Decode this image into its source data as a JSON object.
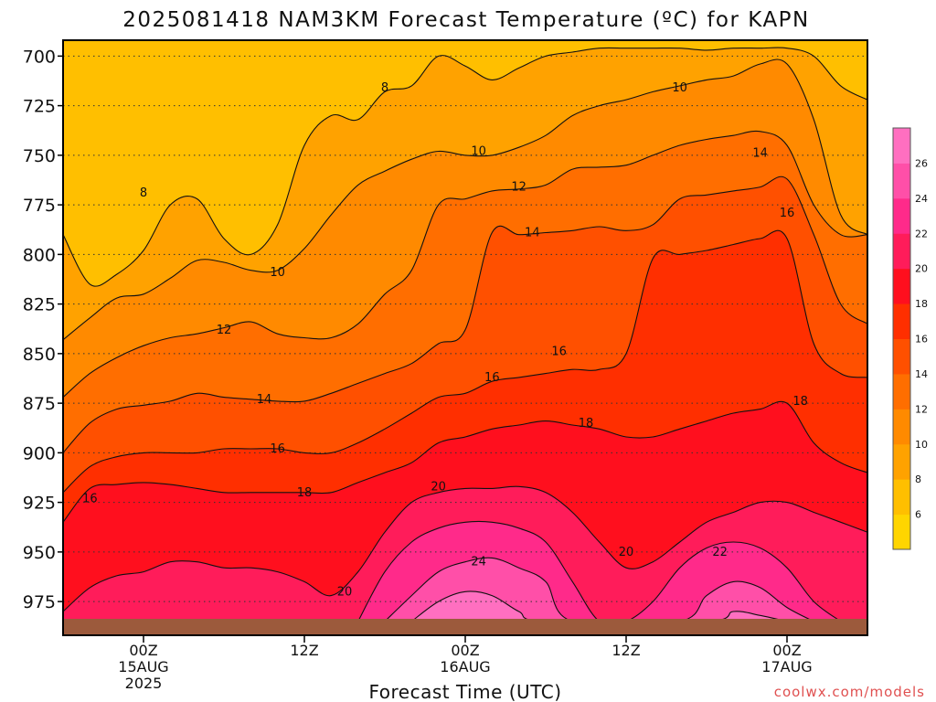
{
  "chart_data": {
    "type": "heatmap",
    "title": "2025081418 NAM3KM Forecast Temperature (ºC) for KAPN",
    "xlabel": "Forecast Time (UTC)",
    "ylabel": "",
    "credit": "coolwx.com/models",
    "x_range_hours": [
      -6,
      54
    ],
    "y_range_hPa": [
      692,
      992
    ],
    "y_ticks": [
      700,
      725,
      750,
      775,
      800,
      825,
      850,
      875,
      900,
      925,
      950,
      975
    ],
    "x_ticks": [
      {
        "hour": 0,
        "lines": [
          "00Z",
          "15AUG",
          "2025"
        ]
      },
      {
        "hour": 12,
        "lines": [
          "12Z"
        ]
      },
      {
        "hour": 24,
        "lines": [
          "00Z",
          "16AUG"
        ]
      },
      {
        "hour": 36,
        "lines": [
          "12Z"
        ]
      },
      {
        "hour": 48,
        "lines": [
          "00Z",
          "17AUG"
        ]
      }
    ],
    "grid": true,
    "ground_level_hPa": 985,
    "colorbar": {
      "position": "right",
      "levels": [
        6,
        8,
        10,
        12,
        14,
        16,
        18,
        20,
        22,
        24,
        26
      ],
      "colors": [
        "#ffd500",
        "#ffbf00",
        "#ffa200",
        "#ff8a00",
        "#ff6e00",
        "#ff5000",
        "#ff2f00",
        "#ff0f1e",
        "#ff1c5a",
        "#ff2a8a",
        "#ff4fa8",
        "#ff6fc0"
      ]
    },
    "contour_interval": 2,
    "series": [
      {
        "level": 8,
        "pressure_by_hour": [
          [
            -6,
            790
          ],
          [
            -4,
            815
          ],
          [
            -2,
            810
          ],
          [
            0,
            798
          ],
          [
            2,
            775
          ],
          [
            4,
            772
          ],
          [
            6,
            792
          ],
          [
            8,
            800
          ],
          [
            10,
            785
          ],
          [
            12,
            745
          ],
          [
            14,
            730
          ],
          [
            16,
            732
          ],
          [
            18,
            718
          ],
          [
            20,
            715
          ],
          [
            22,
            700
          ],
          [
            24,
            705
          ],
          [
            26,
            712
          ],
          [
            28,
            706
          ],
          [
            30,
            700
          ],
          [
            32,
            698
          ],
          [
            34,
            696
          ],
          [
            36,
            696
          ],
          [
            38,
            696
          ],
          [
            40,
            696
          ],
          [
            42,
            697
          ],
          [
            44,
            696
          ],
          [
            46,
            696
          ],
          [
            48,
            696
          ],
          [
            50,
            700
          ],
          [
            52,
            715
          ],
          [
            54,
            722
          ]
        ]
      },
      {
        "level": 10,
        "pressure_by_hour": [
          [
            -6,
            843
          ],
          [
            -4,
            832
          ],
          [
            -2,
            822
          ],
          [
            0,
            820
          ],
          [
            2,
            812
          ],
          [
            4,
            803
          ],
          [
            6,
            804
          ],
          [
            8,
            808
          ],
          [
            10,
            808
          ],
          [
            12,
            797
          ],
          [
            14,
            780
          ],
          [
            16,
            765
          ],
          [
            18,
            758
          ],
          [
            20,
            752
          ],
          [
            22,
            748
          ],
          [
            24,
            750
          ],
          [
            26,
            750
          ],
          [
            28,
            746
          ],
          [
            30,
            740
          ],
          [
            32,
            730
          ],
          [
            34,
            725
          ],
          [
            36,
            722
          ],
          [
            38,
            718
          ],
          [
            40,
            715
          ],
          [
            42,
            712
          ],
          [
            44,
            710
          ],
          [
            46,
            704
          ],
          [
            48,
            704
          ],
          [
            50,
            732
          ],
          [
            52,
            780
          ],
          [
            54,
            790
          ]
        ]
      },
      {
        "level": 12,
        "pressure_by_hour": [
          [
            -6,
            872
          ],
          [
            -4,
            860
          ],
          [
            -2,
            852
          ],
          [
            0,
            846
          ],
          [
            2,
            842
          ],
          [
            4,
            840
          ],
          [
            6,
            837
          ],
          [
            8,
            834
          ],
          [
            10,
            840
          ],
          [
            12,
            842
          ],
          [
            14,
            842
          ],
          [
            16,
            835
          ],
          [
            18,
            820
          ],
          [
            20,
            808
          ],
          [
            22,
            775
          ],
          [
            24,
            772
          ],
          [
            26,
            768
          ],
          [
            28,
            767
          ],
          [
            30,
            765
          ],
          [
            32,
            757
          ],
          [
            34,
            756
          ],
          [
            36,
            755
          ],
          [
            38,
            750
          ],
          [
            40,
            745
          ],
          [
            42,
            742
          ],
          [
            44,
            740
          ],
          [
            46,
            738
          ],
          [
            48,
            745
          ],
          [
            50,
            775
          ],
          [
            52,
            790
          ],
          [
            54,
            790
          ]
        ]
      },
      {
        "level": 14,
        "pressure_by_hour": [
          [
            -6,
            900
          ],
          [
            -4,
            885
          ],
          [
            -2,
            878
          ],
          [
            0,
            876
          ],
          [
            2,
            874
          ],
          [
            4,
            870
          ],
          [
            6,
            872
          ],
          [
            8,
            873
          ],
          [
            10,
            874
          ],
          [
            12,
            874
          ],
          [
            14,
            870
          ],
          [
            16,
            865
          ],
          [
            18,
            860
          ],
          [
            20,
            855
          ],
          [
            22,
            845
          ],
          [
            24,
            838
          ],
          [
            26,
            789
          ],
          [
            28,
            790
          ],
          [
            30,
            789
          ],
          [
            32,
            788
          ],
          [
            34,
            786
          ],
          [
            36,
            788
          ],
          [
            38,
            785
          ],
          [
            40,
            772
          ],
          [
            42,
            770
          ],
          [
            44,
            768
          ],
          [
            46,
            766
          ],
          [
            48,
            762
          ],
          [
            50,
            790
          ],
          [
            52,
            825
          ],
          [
            54,
            835
          ]
        ]
      },
      {
        "level": 16,
        "pressure_by_hour": [
          [
            -6,
            920
          ],
          [
            -4,
            907
          ],
          [
            -2,
            902
          ],
          [
            0,
            900
          ],
          [
            2,
            900
          ],
          [
            4,
            900
          ],
          [
            6,
            898
          ],
          [
            8,
            898
          ],
          [
            10,
            898
          ],
          [
            12,
            900
          ],
          [
            14,
            900
          ],
          [
            16,
            895
          ],
          [
            18,
            888
          ],
          [
            20,
            880
          ],
          [
            22,
            872
          ],
          [
            24,
            870
          ],
          [
            26,
            864
          ],
          [
            28,
            862
          ],
          [
            30,
            860
          ],
          [
            32,
            858
          ],
          [
            34,
            858
          ],
          [
            36,
            850
          ],
          [
            38,
            802
          ],
          [
            40,
            800
          ],
          [
            42,
            798
          ],
          [
            44,
            795
          ],
          [
            46,
            792
          ],
          [
            48,
            792
          ],
          [
            50,
            845
          ],
          [
            52,
            860
          ],
          [
            54,
            862
          ]
        ]
      },
      {
        "level": 18,
        "pressure_by_hour": [
          [
            -6,
            935
          ],
          [
            -4,
            918
          ],
          [
            -2,
            916
          ],
          [
            0,
            915
          ],
          [
            2,
            916
          ],
          [
            4,
            918
          ],
          [
            6,
            920
          ],
          [
            8,
            920
          ],
          [
            10,
            920
          ],
          [
            12,
            920
          ],
          [
            14,
            920
          ],
          [
            16,
            915
          ],
          [
            18,
            910
          ],
          [
            20,
            905
          ],
          [
            22,
            895
          ],
          [
            24,
            892
          ],
          [
            26,
            888
          ],
          [
            28,
            886
          ],
          [
            30,
            884
          ],
          [
            32,
            886
          ],
          [
            34,
            888
          ],
          [
            36,
            892
          ],
          [
            38,
            892
          ],
          [
            40,
            888
          ],
          [
            42,
            884
          ],
          [
            44,
            880
          ],
          [
            46,
            878
          ],
          [
            48,
            875
          ],
          [
            50,
            895
          ],
          [
            52,
            905
          ],
          [
            54,
            910
          ]
        ]
      },
      {
        "level": 20,
        "pressure_by_hour": [
          [
            -6,
            980
          ],
          [
            -4,
            968
          ],
          [
            -2,
            962
          ],
          [
            0,
            960
          ],
          [
            2,
            955
          ],
          [
            4,
            955
          ],
          [
            6,
            958
          ],
          [
            8,
            958
          ],
          [
            10,
            960
          ],
          [
            12,
            965
          ],
          [
            14,
            972
          ],
          [
            16,
            960
          ],
          [
            18,
            940
          ],
          [
            20,
            925
          ],
          [
            22,
            920
          ],
          [
            24,
            918
          ],
          [
            26,
            918
          ],
          [
            28,
            917
          ],
          [
            30,
            920
          ],
          [
            32,
            930
          ],
          [
            34,
            945
          ],
          [
            36,
            958
          ],
          [
            38,
            955
          ],
          [
            40,
            945
          ],
          [
            42,
            935
          ],
          [
            44,
            930
          ],
          [
            46,
            925
          ],
          [
            48,
            925
          ],
          [
            50,
            930
          ],
          [
            52,
            935
          ],
          [
            54,
            940
          ]
        ]
      },
      {
        "level": 22,
        "pressure_by_hour": [
          [
            16,
            985
          ],
          [
            18,
            960
          ],
          [
            20,
            945
          ],
          [
            22,
            938
          ],
          [
            24,
            935
          ],
          [
            26,
            935
          ],
          [
            28,
            938
          ],
          [
            30,
            945
          ],
          [
            32,
            965
          ],
          [
            34,
            985
          ],
          [
            36,
            985
          ],
          [
            38,
            975
          ],
          [
            40,
            958
          ],
          [
            42,
            948
          ],
          [
            44,
            945
          ],
          [
            46,
            948
          ],
          [
            48,
            958
          ],
          [
            50,
            975
          ],
          [
            52,
            985
          ]
        ]
      },
      {
        "level": 24,
        "pressure_by_hour": [
          [
            18,
            985
          ],
          [
            20,
            972
          ],
          [
            22,
            960
          ],
          [
            24,
            955
          ],
          [
            26,
            953
          ],
          [
            28,
            958
          ],
          [
            30,
            965
          ],
          [
            32,
            985
          ],
          [
            40,
            985
          ],
          [
            42,
            972
          ],
          [
            44,
            965
          ],
          [
            46,
            968
          ],
          [
            48,
            978
          ],
          [
            50,
            985
          ]
        ]
      },
      {
        "level": 26,
        "pressure_by_hour": [
          [
            20,
            985
          ],
          [
            22,
            975
          ],
          [
            24,
            970
          ],
          [
            26,
            972
          ],
          [
            28,
            980
          ],
          [
            30,
            985
          ],
          [
            42,
            985
          ],
          [
            44,
            980
          ],
          [
            46,
            982
          ],
          [
            48,
            985
          ]
        ]
      }
    ],
    "contour_labels": [
      {
        "text": "8",
        "hour": 0,
        "pressure": 769
      },
      {
        "text": "8",
        "hour": 18,
        "pressure": 716
      },
      {
        "text": "10",
        "hour": 40,
        "pressure": 716
      },
      {
        "text": "10",
        "hour": 10,
        "pressure": 809
      },
      {
        "text": "10",
        "hour": 25,
        "pressure": 748
      },
      {
        "text": "12",
        "hour": 6,
        "pressure": 838
      },
      {
        "text": "12",
        "hour": 28,
        "pressure": 766
      },
      {
        "text": "14",
        "hour": 9,
        "pressure": 873
      },
      {
        "text": "14",
        "hour": 29,
        "pressure": 789
      },
      {
        "text": "14",
        "hour": 46,
        "pressure": 749
      },
      {
        "text": "16",
        "hour": 10,
        "pressure": 898
      },
      {
        "text": "16",
        "hour": 26,
        "pressure": 862
      },
      {
        "text": "16",
        "hour": 31,
        "pressure": 849
      },
      {
        "text": "16",
        "hour": 48,
        "pressure": 779
      },
      {
        "text": "16",
        "hour": -4,
        "pressure": 923
      },
      {
        "text": "18",
        "hour": 12,
        "pressure": 920
      },
      {
        "text": "18",
        "hour": 33,
        "pressure": 885
      },
      {
        "text": "18",
        "hour": 49,
        "pressure": 874
      },
      {
        "text": "20",
        "hour": 22,
        "pressure": 917
      },
      {
        "text": "20",
        "hour": 15,
        "pressure": 970
      },
      {
        "text": "20",
        "hour": 36,
        "pressure": 950
      },
      {
        "text": "22",
        "hour": 43,
        "pressure": 950
      },
      {
        "text": "24",
        "hour": 25,
        "pressure": 955
      }
    ]
  }
}
